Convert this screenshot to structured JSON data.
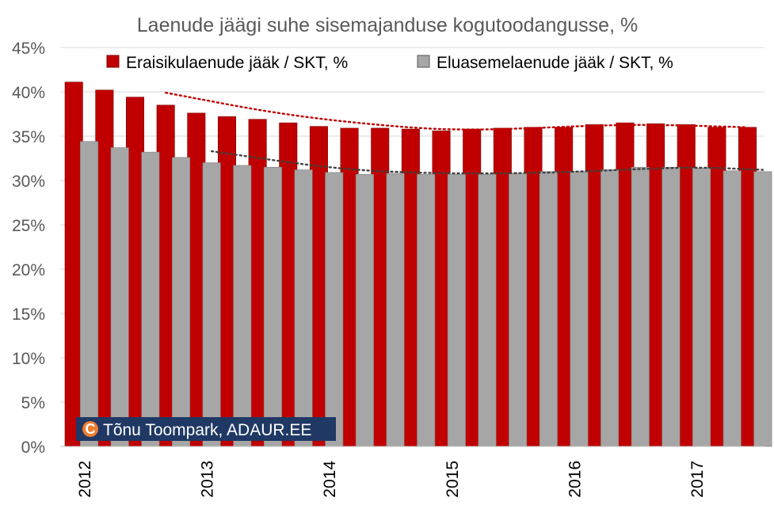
{
  "chart_data": {
    "type": "bar",
    "title": "Laenude jäägi suhe sisemajanduse kogutoodangusse, %",
    "xlabel": "",
    "ylabel": "",
    "ylim": [
      0,
      45
    ],
    "y_ticks": [
      "0%",
      "5%",
      "10%",
      "15%",
      "20%",
      "25%",
      "30%",
      "35%",
      "40%",
      "45%"
    ],
    "x_year_labels": [
      "2012",
      "2013",
      "2014",
      "2015",
      "2016",
      "2017"
    ],
    "grid": true,
    "legend_position": "top",
    "series": [
      {
        "name": "Eraisikulaenude jääk / SKT, %",
        "color": "#c00000",
        "values": [
          41.1,
          40.2,
          39.4,
          38.5,
          37.6,
          37.2,
          36.9,
          36.5,
          36.1,
          35.9,
          35.9,
          35.8,
          35.6,
          35.8,
          35.9,
          36.0,
          36.0,
          36.3,
          36.5,
          36.4,
          36.3,
          36.0,
          36.0
        ],
        "trendline": {
          "style": "dotted",
          "color": "#c00000",
          "points": [
            [
              3,
              39.9
            ],
            [
              7,
              37.3
            ],
            [
              11,
              35.9
            ],
            [
              13,
              35.7
            ],
            [
              15,
              35.9
            ],
            [
              17,
              36.2
            ],
            [
              19,
              36.3
            ],
            [
              22,
              36.0
            ]
          ]
        }
      },
      {
        "name": "Eluasemelaenude jääk / SKT, %",
        "color": "#a6a6a6",
        "values": [
          34.4,
          33.7,
          33.2,
          32.6,
          32.0,
          31.7,
          31.5,
          31.2,
          30.9,
          30.7,
          30.8,
          30.7,
          30.7,
          30.7,
          30.8,
          31.0,
          31.0,
          31.2,
          31.5,
          31.5,
          31.4,
          31.1,
          31.0
        ],
        "trendline": {
          "style": "dotted",
          "color": "#404040",
          "points": [
            [
              4,
              33.3
            ],
            [
              8,
              31.3
            ],
            [
              11,
              30.8
            ],
            [
              14,
              30.8
            ],
            [
              16,
              31.0
            ],
            [
              18,
              31.3
            ],
            [
              20,
              31.5
            ],
            [
              22,
              31.2
            ]
          ]
        }
      }
    ]
  },
  "watermark": {
    "symbol": "C",
    "text": "Tõnu Toompark, ADAUR.EE",
    "color": "#ed7d31"
  }
}
